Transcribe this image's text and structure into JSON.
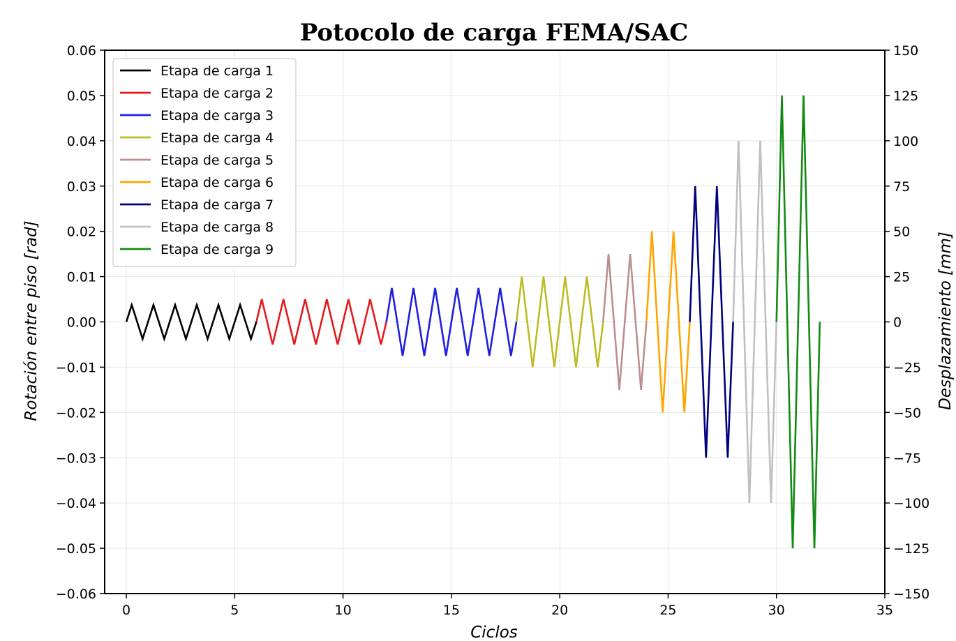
{
  "chart_data": {
    "type": "line",
    "title": "Potocolo de carga FEMA/SAC",
    "xlabel": "Ciclos",
    "ylabel": "Rotación entre piso [rad]",
    "y2label": "Desplazamiento [mm]",
    "xlim": [
      -1,
      35
    ],
    "ylim": [
      -0.06,
      0.06
    ],
    "y2lim": [
      -150,
      150
    ],
    "x_ticks": [
      0,
      5,
      10,
      15,
      20,
      25,
      30,
      35
    ],
    "y_ticks": [
      -0.06,
      -0.05,
      -0.04,
      -0.03,
      -0.02,
      -0.01,
      0.0,
      0.01,
      0.02,
      0.03,
      0.04,
      0.05,
      0.06
    ],
    "y_tick_labels": [
      "−0.06",
      "−0.05",
      "−0.04",
      "−0.03",
      "−0.02",
      "−0.01",
      "0.00",
      "0.01",
      "0.02",
      "0.03",
      "0.04",
      "0.05",
      "0.06"
    ],
    "y2_ticks": [
      -150,
      -125,
      -100,
      -75,
      -50,
      -25,
      0,
      25,
      50,
      75,
      100,
      125,
      150
    ],
    "y2_tick_labels": [
      "−150",
      "−125",
      "−100",
      "−75",
      "−50",
      "−25",
      "0",
      "25",
      "50",
      "75",
      "100",
      "125",
      "150"
    ],
    "grid": true,
    "legend_position": "top-left",
    "series": [
      {
        "name": "Etapa de carga 1",
        "color": "#000000",
        "amplitude": 0.00375,
        "x_start": 0,
        "cycles": 6
      },
      {
        "name": "Etapa de carga 2",
        "color": "#e41a1c",
        "amplitude": 0.005,
        "x_start": 6,
        "cycles": 6
      },
      {
        "name": "Etapa de carga 3",
        "color": "#1f1fe0",
        "amplitude": 0.0075,
        "x_start": 12,
        "cycles": 6
      },
      {
        "name": "Etapa de carga 4",
        "color": "#bcbd22",
        "amplitude": 0.01,
        "x_start": 18,
        "cycles": 4
      },
      {
        "name": "Etapa de carga 5",
        "color": "#bc8f8f",
        "amplitude": 0.015,
        "x_start": 22,
        "cycles": 2
      },
      {
        "name": "Etapa de carga 6",
        "color": "#ffa500",
        "amplitude": 0.02,
        "x_start": 24,
        "cycles": 2
      },
      {
        "name": "Etapa de carga 7",
        "color": "#000080",
        "amplitude": 0.03,
        "x_start": 26,
        "cycles": 2
      },
      {
        "name": "Etapa de carga 8",
        "color": "#c0c0c0",
        "amplitude": 0.04,
        "x_start": 28,
        "cycles": 2
      },
      {
        "name": "Etapa de carga 9",
        "color": "#138a13",
        "amplitude": 0.05,
        "x_start": 30,
        "cycles": 2
      }
    ]
  }
}
